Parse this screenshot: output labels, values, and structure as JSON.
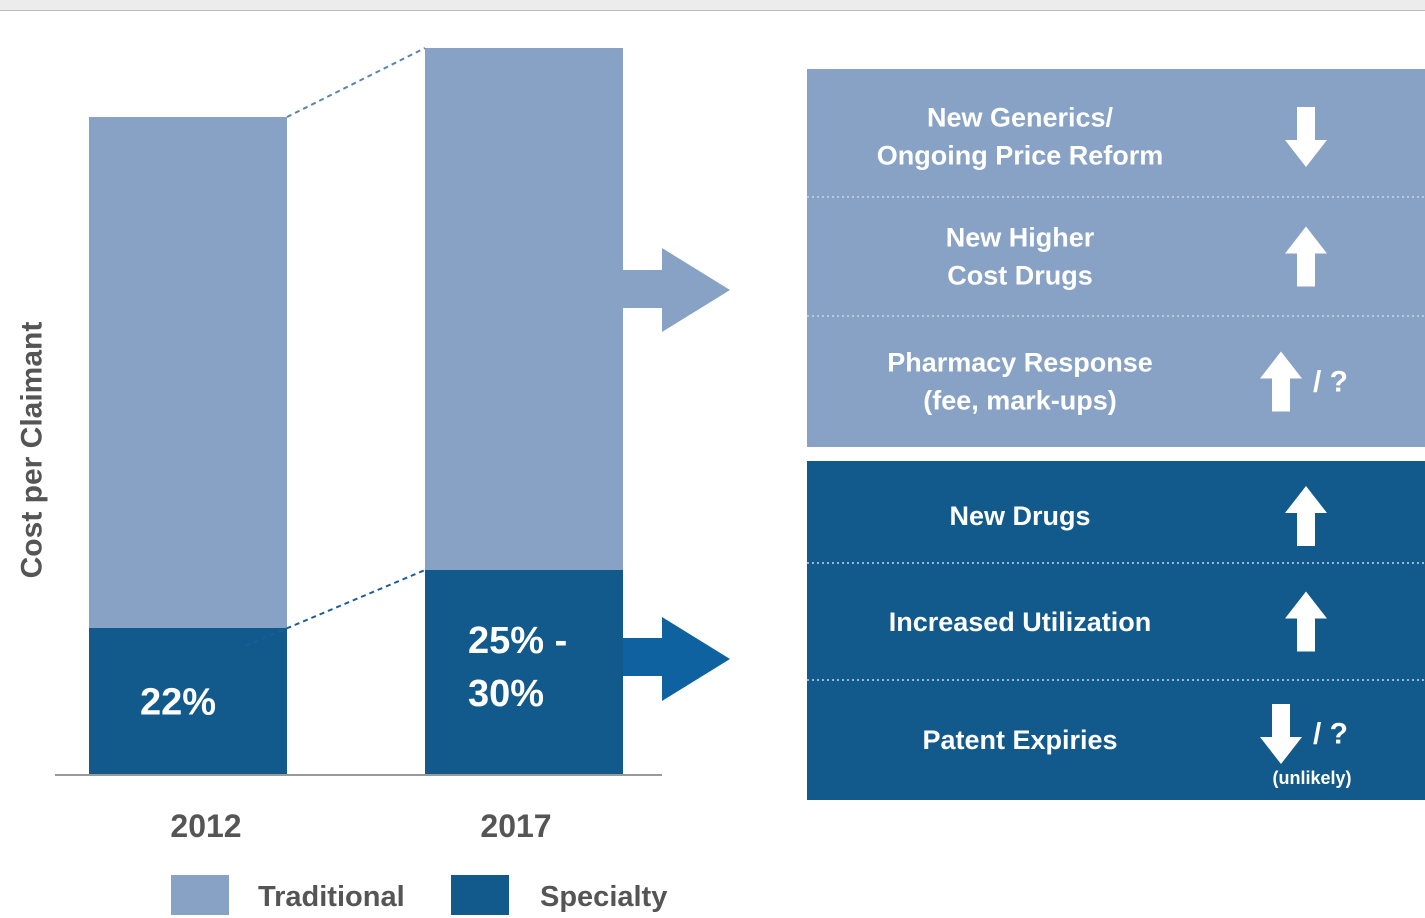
{
  "y_axis_label": "Cost per Claimant",
  "bars": [
    {
      "label": "2012",
      "specialty_label": "22%"
    },
    {
      "label": "2017",
      "specialty_label": "25% -\n30%"
    }
  ],
  "legend": [
    {
      "name": "Traditional",
      "color": "#87a2c4"
    },
    {
      "name": "Specialty",
      "color": "#135a8c"
    }
  ],
  "panels": [
    {
      "color": "#87a2c4",
      "rows": [
        {
          "text": "New Generics/\nOngoing Price Reform",
          "indicator": "down"
        },
        {
          "text": "New Higher\nCost Drugs",
          "indicator": "up"
        },
        {
          "text": "Pharmacy Response\n(fee, mark-ups)",
          "indicator": "up",
          "suffix": "/ ?"
        }
      ]
    },
    {
      "color": "#135a8c",
      "rows": [
        {
          "text": "New Drugs",
          "indicator": "up"
        },
        {
          "text": "Increased Utilization",
          "indicator": "up"
        },
        {
          "text": "Patent Expiries",
          "indicator": "down",
          "suffix": "/ ?",
          "note": "(unlikely)"
        }
      ]
    }
  ]
}
